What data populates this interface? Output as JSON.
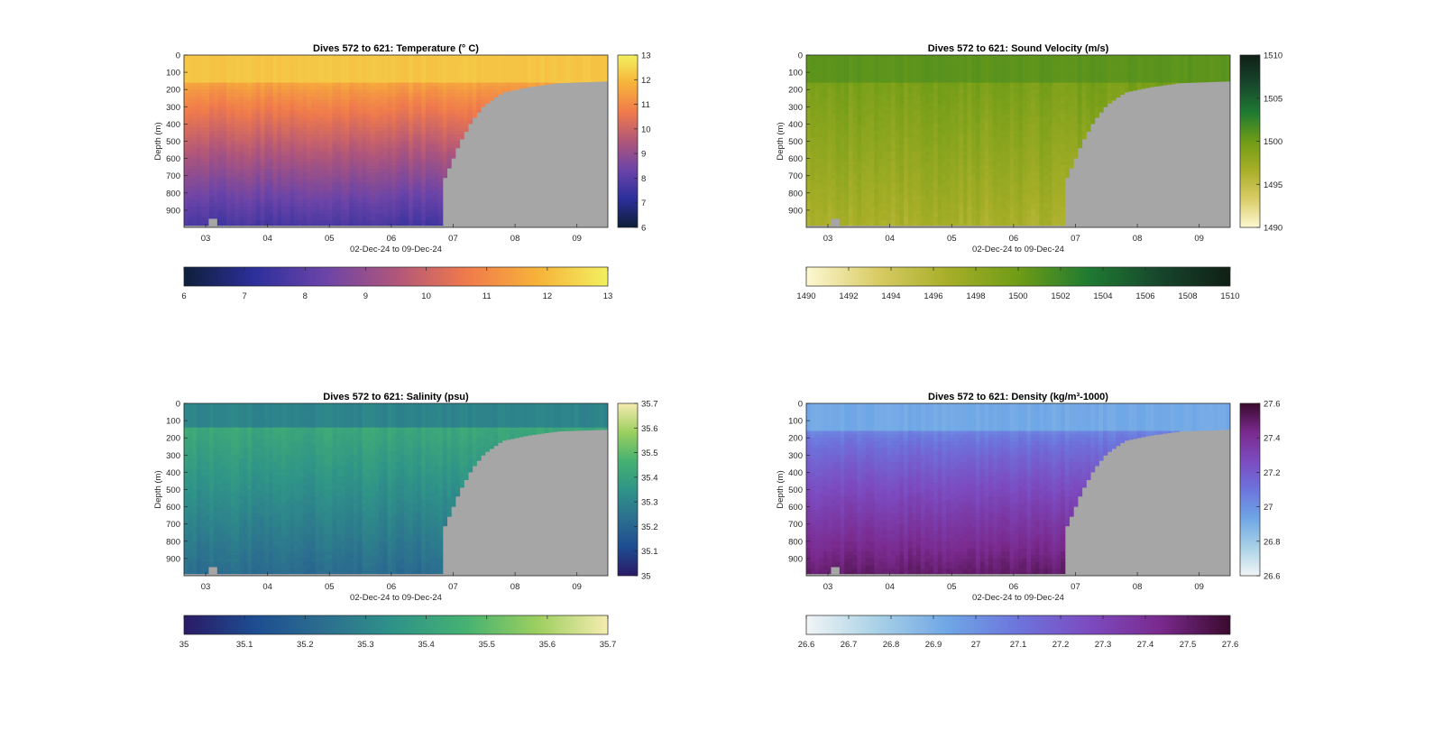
{
  "figure": {
    "background": "#ffffff"
  },
  "chart_data": [
    {
      "type": "heatmap",
      "title": "Dives 572 to 621: Temperature (° C)",
      "xlabel": "02-Dec-24 to 09-Dec-24",
      "ylabel": "Depth (m)",
      "x_ticks": [
        "03",
        "04",
        "05",
        "06",
        "07",
        "08",
        "09"
      ],
      "y_ticks": [
        0,
        100,
        200,
        300,
        400,
        500,
        600,
        700,
        800,
        900
      ],
      "ylim": [
        0,
        1000
      ],
      "y_reversed": true,
      "colorbar": {
        "ticks": [
          13,
          12,
          11,
          10,
          9,
          8,
          7,
          6
        ],
        "range": [
          6,
          13
        ],
        "colors": [
          "#0d1f38",
          "#2d2f9c",
          "#6b44a8",
          "#b0567a",
          "#f07a4c",
          "#f7b23a",
          "#f2f060"
        ]
      },
      "horizontal_colorbar": {
        "ticks": [
          "6",
          "7",
          "8",
          "9",
          "10",
          "11",
          "12",
          "13"
        ]
      },
      "surface_value": 12.3,
      "deep_value": 7.5,
      "no_data_color": "#a6a6a6"
    },
    {
      "type": "heatmap",
      "title": "Dives 572 to 621: Sound Velocity (m/s)",
      "xlabel": "02-Dec-24 to 09-Dec-24",
      "ylabel": "Depth (m)",
      "x_ticks": [
        "03",
        "04",
        "05",
        "06",
        "07",
        "08",
        "09"
      ],
      "y_ticks": [
        0,
        100,
        200,
        300,
        400,
        500,
        600,
        700,
        800,
        900
      ],
      "ylim": [
        0,
        1000
      ],
      "y_reversed": true,
      "colorbar": {
        "ticks": [
          1510,
          1505,
          1500,
          1495,
          1490
        ],
        "range": [
          1490,
          1510
        ],
        "colors": [
          "#fdf8d2",
          "#d9cc66",
          "#a7ae28",
          "#6f9c16",
          "#1f7a32",
          "#17462c",
          "#0f1f14"
        ]
      },
      "horizontal_colorbar": {
        "ticks": [
          "1490",
          "1492",
          "1494",
          "1496",
          "1498",
          "1500",
          "1502",
          "1504",
          "1506",
          "1508",
          "1510"
        ]
      },
      "surface_value": 1501,
      "deep_value": 1497.5,
      "no_data_color": "#a6a6a6"
    },
    {
      "type": "heatmap",
      "title": "Dives 572 to 621: Salinity (psu)",
      "xlabel": "02-Dec-24 to 09-Dec-24",
      "ylabel": "Depth (m)",
      "x_ticks": [
        "03",
        "04",
        "05",
        "06",
        "07",
        "08",
        "09"
      ],
      "y_ticks": [
        0,
        100,
        200,
        300,
        400,
        500,
        600,
        700,
        800,
        900
      ],
      "ylim": [
        0,
        1000
      ],
      "y_reversed": true,
      "colorbar": {
        "ticks": [
          35.7,
          35.6,
          35.5,
          35.4,
          35.3,
          35.2,
          35.1,
          35
        ],
        "range": [
          35,
          35.7
        ],
        "colors": [
          "#2a1a66",
          "#1d4d91",
          "#2c6f8f",
          "#2f9488",
          "#46b271",
          "#9ccf5f",
          "#f6ecb0"
        ]
      },
      "horizontal_colorbar": {
        "ticks": [
          "35",
          "35.1",
          "35.2",
          "35.3",
          "35.4",
          "35.5",
          "35.6",
          "35.7"
        ]
      },
      "surface_value": 35.3,
      "mid_value": 35.42,
      "deep_value": 35.22,
      "no_data_color": "#a6a6a6"
    },
    {
      "type": "heatmap",
      "title": "Dives 572 to 621: Density (kg/m³-1000)",
      "xlabel": "02-Dec-24 to 09-Dec-24",
      "ylabel": "Depth (m)",
      "x_ticks": [
        "03",
        "04",
        "05",
        "06",
        "07",
        "08",
        "09"
      ],
      "y_ticks": [
        0,
        100,
        200,
        300,
        400,
        500,
        600,
        700,
        800,
        900
      ],
      "ylim": [
        0,
        1000
      ],
      "y_reversed": true,
      "colorbar": {
        "ticks": [
          27.6,
          27.4,
          27.2,
          27,
          26.8,
          26.6
        ],
        "range": [
          26.6,
          27.6
        ],
        "colors": [
          "#f1f5f6",
          "#a9d1e6",
          "#6fa6e6",
          "#6d74dc",
          "#7c4bc0",
          "#7a2a8e",
          "#3a0a2e"
        ]
      },
      "horizontal_colorbar": {
        "ticks": [
          "26.6",
          "26.7",
          "26.8",
          "26.9",
          "27",
          "27.1",
          "27.2",
          "27.3",
          "27.4",
          "27.5",
          "27.6"
        ]
      },
      "surface_value": 26.9,
      "deep_value": 27.5,
      "no_data_color": "#a6a6a6"
    }
  ]
}
